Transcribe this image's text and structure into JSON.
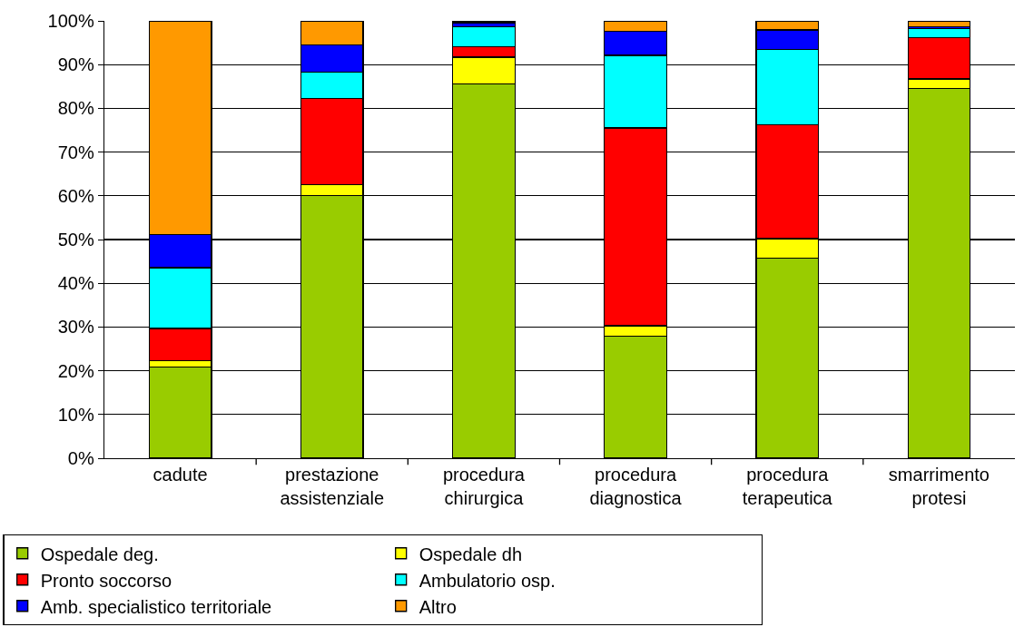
{
  "chart_data": {
    "type": "bar",
    "stacked": true,
    "categories": [
      "cadute",
      "prestazione assistenziale",
      "procedura chirurgica",
      "procedura diagnostica",
      "procedura terapeutica",
      "smarrimento protesi"
    ],
    "series": [
      {
        "name": "Ospedale deg.",
        "color": "#99cc00",
        "values": [
          20.8,
          60,
          85.6,
          27.9,
          45.7,
          84.6
        ]
      },
      {
        "name": "Ospedale dh",
        "color": "#ffff00",
        "values": [
          1.5,
          2.5,
          6.1,
          2.4,
          4.5,
          2.1
        ]
      },
      {
        "name": "Pronto soccorso",
        "color": "#ff0000",
        "values": [
          7.4,
          19.7,
          2.4,
          45.2,
          26.0,
          9.5
        ]
      },
      {
        "name": "Ambulatorio osp.",
        "color": "#00ffff",
        "values": [
          13.9,
          6.1,
          4.5,
          16.6,
          17.2,
          2.1
        ]
      },
      {
        "name": "Amb. specialistico territoriale",
        "color": "#0000ff",
        "values": [
          7.6,
          6.2,
          1.0,
          5.5,
          4.5,
          0.4
        ]
      },
      {
        "name": "Altro",
        "color": "#ff9900",
        "values": [
          48.8,
          5.5,
          0.4,
          2.4,
          2.1,
          1.3
        ]
      }
    ],
    "ylim": [
      0,
      100
    ],
    "yticks": [
      {
        "value": 0,
        "label": "0%"
      },
      {
        "value": 10,
        "label": "10%"
      },
      {
        "value": 20,
        "label": "20%"
      },
      {
        "value": 30,
        "label": "30%"
      },
      {
        "value": 40,
        "label": "40%"
      },
      {
        "value": 50,
        "label": "50%"
      },
      {
        "value": 60,
        "label": "60%"
      },
      {
        "value": 70,
        "label": "70%"
      },
      {
        "value": 80,
        "label": "80%"
      },
      {
        "value": 90,
        "label": "90%"
      },
      {
        "value": 100,
        "label": "100%"
      }
    ],
    "grid": "y",
    "legend": "bottom"
  }
}
